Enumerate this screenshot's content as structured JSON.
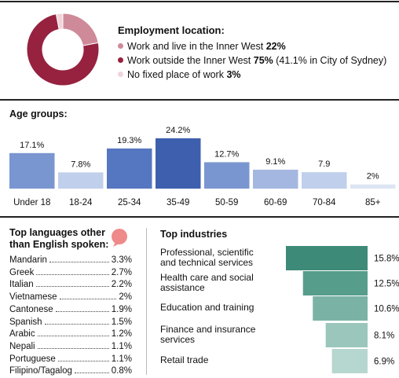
{
  "employment": {
    "title": "Employment location:",
    "items": [
      {
        "label": "Work and live in the Inner West",
        "value": "22%",
        "pct": 22,
        "color": "#cf8a99"
      },
      {
        "label": "Work outside the Inner West",
        "value": "75%",
        "extra": "(41.1% in City of Sydney)",
        "pct": 75,
        "color": "#96223f"
      },
      {
        "label": "No fixed place of work",
        "value": "3%",
        "pct": 3,
        "color": "#f2d3da"
      }
    ]
  },
  "age": {
    "title": "Age groups:",
    "chart_data": {
      "type": "bar",
      "categories": [
        "Under 18",
        "18-24",
        "25-34",
        "35-49",
        "50-59",
        "60-69",
        "70-84",
        "85+"
      ],
      "values": [
        17.1,
        7.8,
        19.3,
        24.2,
        12.7,
        9.1,
        7.9,
        2
      ],
      "value_labels": [
        "17.1%",
        "7.8%",
        "19.3%",
        "24.2%",
        "12.7%",
        "9.1%",
        "7.9",
        "2%"
      ],
      "colors": [
        "#7a96d0",
        "#c0cfeb",
        "#5576c0",
        "#3d5fae",
        "#7a96d0",
        "#a4b7e0",
        "#c0cfeb",
        "#dde5f3"
      ],
      "ylim": [
        0,
        24.2
      ]
    }
  },
  "languages": {
    "title_line1": "Top languages other",
    "title_line2": "than English spoken:",
    "items": [
      {
        "name": "Mandarin",
        "value": "3.3%"
      },
      {
        "name": "Greek",
        "value": "2.7%"
      },
      {
        "name": "Italian",
        "value": "2.2%"
      },
      {
        "name": "Vietnamese",
        "value": "2%"
      },
      {
        "name": "Cantonese",
        "value": "1.9%"
      },
      {
        "name": "Spanish",
        "value": "1.5%"
      },
      {
        "name": "Arabic",
        "value": "1.2%"
      },
      {
        "name": "Nepali",
        "value": "1.1%"
      },
      {
        "name": "Portuguese",
        "value": "1.1%"
      },
      {
        "name": "Filipino/Tagalog",
        "value": "0.8%"
      }
    ],
    "bubble_color": "#ef8a8a"
  },
  "industries": {
    "title": "Top industries",
    "chart_data": {
      "type": "bar",
      "categories": [
        "Professional, scientific and technical services",
        "Health care and social assistance",
        "Education and training",
        "Finance and insurance services",
        "Retail trade"
      ],
      "values": [
        15.8,
        12.5,
        10.6,
        8.1,
        6.9
      ],
      "value_labels": [
        "15.8%",
        "12.5%",
        "10.6%",
        "8.1%",
        "6.9%"
      ],
      "colors": [
        "#3e8a78",
        "#579d8c",
        "#7ab3a6",
        "#9ac6bb",
        "#b6d7cf"
      ]
    },
    "labels": [
      {
        "line1": "Professional, scientific",
        "line2": "and technical services"
      },
      {
        "line1": "Health care and social",
        "line2": "assistance"
      },
      {
        "line1": "Education and training",
        "line2": ""
      },
      {
        "line1": "Finance and insurance",
        "line2": "services"
      },
      {
        "line1": "Retail trade",
        "line2": ""
      }
    ]
  }
}
